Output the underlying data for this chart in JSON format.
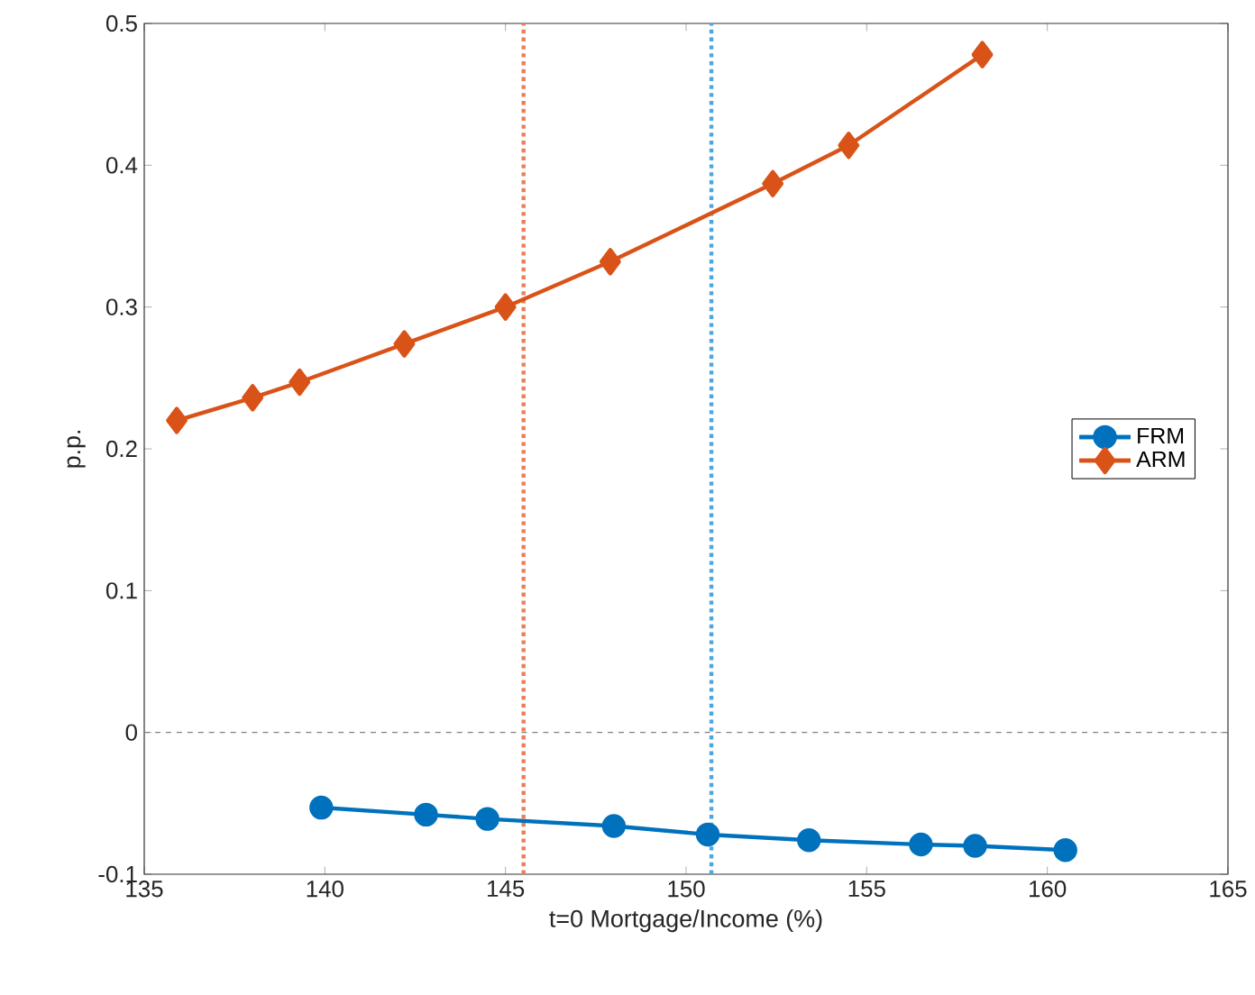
{
  "chart_data": {
    "type": "line",
    "xlabel": "t=0 Mortgage/Income (%)",
    "ylabel": "p.p.",
    "xlim": [
      135,
      165
    ],
    "xticks": [
      135,
      140,
      145,
      150,
      155,
      160,
      165
    ],
    "ylim": [
      -0.1,
      0.5
    ],
    "yticks": [
      -0.1,
      0,
      0.1,
      0.2,
      0.3,
      0.4,
      0.5
    ],
    "series": [
      {
        "name": "FRM",
        "color": "#0072bd",
        "marker": "circle",
        "x": [
          139.9,
          142.8,
          144.5,
          148.0,
          150.6,
          153.4,
          156.5,
          158.0,
          160.5
        ],
        "values": [
          -0.053,
          -0.058,
          -0.061,
          -0.066,
          -0.072,
          -0.076,
          -0.079,
          -0.08,
          -0.083
        ]
      },
      {
        "name": "ARM",
        "color": "#d95319",
        "marker": "diamond",
        "x": [
          135.9,
          138.0,
          139.3,
          142.2,
          145.0,
          147.9,
          152.4,
          154.5,
          158.2
        ],
        "values": [
          0.22,
          0.236,
          0.247,
          0.274,
          0.3,
          0.332,
          0.387,
          0.414,
          0.478
        ]
      }
    ],
    "ref_lines": [
      {
        "axis": "y",
        "value": 0,
        "color": "#808080",
        "line_style": "dashed"
      },
      {
        "axis": "x",
        "value": 145.5,
        "color": "#ec7f56",
        "line_style": "dotted"
      },
      {
        "axis": "x",
        "value": 150.7,
        "color": "#4da6de",
        "line_style": "dotted"
      }
    ],
    "legend": "right",
    "grid": false
  }
}
